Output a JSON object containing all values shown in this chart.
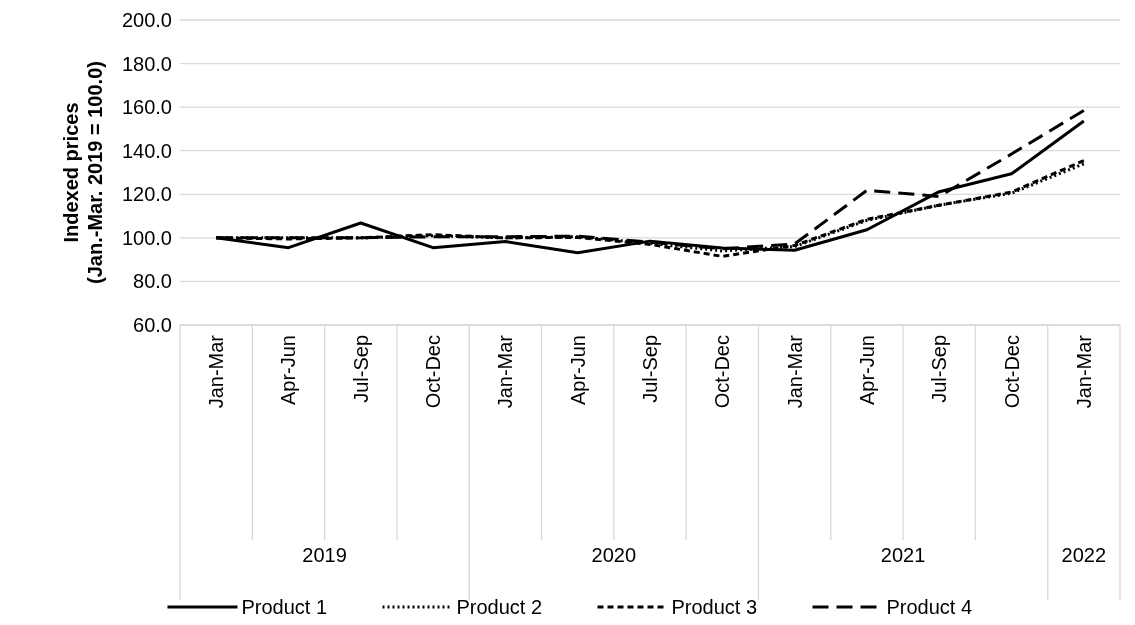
{
  "chart_data": {
    "type": "line",
    "ylabel": "Indexed prices\n(Jan.-Mar. 2019 = 100.0)",
    "categories": [
      "Jan-Mar",
      "Apr-Jun",
      "Jul-Sep",
      "Oct-Dec",
      "Jan-Mar",
      "Apr-Jun",
      "Jul-Sep",
      "Oct-Dec",
      "Jan-Mar",
      "Apr-Jun",
      "Jul-Sep",
      "Oct-Dec",
      "Jan-Mar"
    ],
    "annotations": [
      "2019",
      "2020",
      "2021",
      "2022"
    ],
    "series": [
      {
        "name": "Product 1",
        "color": "#000000",
        "line_style": "solid",
        "values": [
          100,
          95.5,
          106.8,
          95.5,
          98.3,
          93.2,
          98.5,
          95.3,
          94.3,
          103.7,
          121.2,
          129.4,
          153.6
        ]
      },
      {
        "name": "Product 2",
        "color": "#000000",
        "line_style": "dotted",
        "values": [
          100,
          100,
          100,
          101,
          100,
          100.5,
          97.5,
          94,
          96,
          108,
          115,
          120.5,
          134
        ]
      },
      {
        "name": "Product 3",
        "color": "#000000",
        "line_style": "dashed",
        "values": [
          100,
          99.5,
          100,
          101.5,
          100,
          100.2,
          97,
          91.5,
          96.5,
          108.5,
          115,
          121,
          135.5
        ]
      },
      {
        "name": "Product 4",
        "color": "#000000",
        "line_style": "longdash",
        "values": [
          100,
          100,
          100,
          100.5,
          100.5,
          100.8,
          98,
          95,
          97.2,
          121.8,
          119,
          138.5,
          158.5
        ]
      }
    ],
    "ylim": [
      60,
      200
    ],
    "yticks": [
      {
        "value": 60,
        "label": "60.0"
      },
      {
        "value": 80,
        "label": "80.0"
      },
      {
        "value": 100,
        "label": "100.0"
      },
      {
        "value": 120,
        "label": "120.0"
      },
      {
        "value": 140,
        "label": "140.0"
      },
      {
        "value": 160,
        "label": "160.0"
      },
      {
        "value": 180,
        "label": "180.0"
      },
      {
        "value": 200,
        "label": "200.0"
      }
    ],
    "grid": "y",
    "legend": "bottom"
  }
}
